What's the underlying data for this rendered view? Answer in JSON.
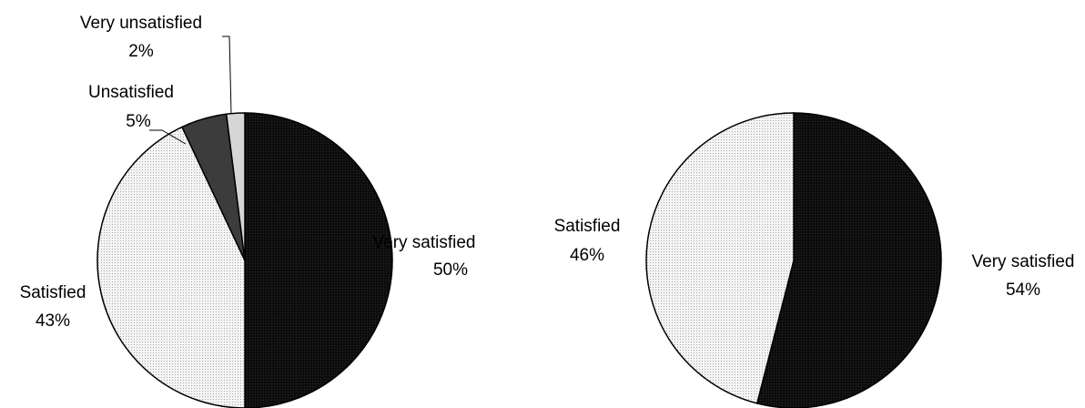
{
  "chart_data": [
    {
      "type": "pie",
      "slices": [
        {
          "label": "Very satisfied",
          "value": 50,
          "value_label": "50%",
          "fill": "black"
        },
        {
          "label": "Satisfied",
          "value": 43,
          "value_label": "43%",
          "fill": "light-dotted"
        },
        {
          "label": "Unsatisfied",
          "value": 5,
          "value_label": "5%",
          "fill": "dark-gray"
        },
        {
          "label": "Very unsatisfied",
          "value": 2,
          "value_label": "2%",
          "fill": "light-gray"
        }
      ],
      "start": "top",
      "direction": "clockwise"
    },
    {
      "type": "pie",
      "slices": [
        {
          "label": "Very satisfied",
          "value": 54,
          "value_label": "54%",
          "fill": "black"
        },
        {
          "label": "Satisfied",
          "value": 46,
          "value_label": "46%",
          "fill": "light-dotted"
        }
      ],
      "start": "top",
      "direction": "clockwise"
    }
  ],
  "colors": {
    "black": "#0d0d0d",
    "light-dotted": "#f1f1f1",
    "dark-gray": "#3c3c3c",
    "light-gray": "#d6d6d6",
    "outline": "#000000"
  }
}
